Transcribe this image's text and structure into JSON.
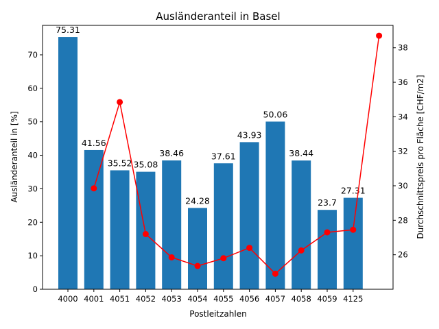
{
  "chart_data": {
    "type": "bar",
    "title": "Ausländeranteil in Basel",
    "xlabel": "Postleitzahlen",
    "ylabel": "Ausländeranteil in [%]",
    "y2label": "Durchschnittspreis pro Fläche [CHF/m2]",
    "categories": [
      "4000",
      "4001",
      "4051",
      "4052",
      "4053",
      "4054",
      "4055",
      "4056",
      "4057",
      "4058",
      "4059",
      "4125"
    ],
    "ylim": [
      0,
      78.8
    ],
    "yticks": [
      0,
      10,
      20,
      30,
      40,
      50,
      60,
      70
    ],
    "y2lim": [
      24.0,
      39.3
    ],
    "y2ticks": [
      26,
      28,
      30,
      32,
      34,
      36,
      38
    ],
    "grid": false,
    "series": [
      {
        "type": "bar",
        "axis": "left",
        "color": "#1f77b4",
        "values": [
          75.31,
          41.56,
          35.52,
          35.08,
          38.46,
          24.28,
          37.61,
          43.93,
          50.06,
          38.44,
          23.7,
          27.31
        ],
        "labels": [
          "75.31",
          "41.56",
          "35.52",
          "35.08",
          "38.46",
          "24.28",
          "37.61",
          "43.93",
          "50.06",
          "38.44",
          "23.7",
          "27.31"
        ]
      },
      {
        "type": "line",
        "axis": "right",
        "color": "#ff0000",
        "marker": "circle",
        "x_positions": [
          1,
          2,
          3,
          4,
          5,
          6,
          7,
          8,
          9,
          10,
          11,
          12
        ],
        "values": [
          29.85,
          34.85,
          27.2,
          25.85,
          25.35,
          25.8,
          26.4,
          24.9,
          26.25,
          27.3,
          27.45,
          38.7
        ]
      }
    ]
  }
}
